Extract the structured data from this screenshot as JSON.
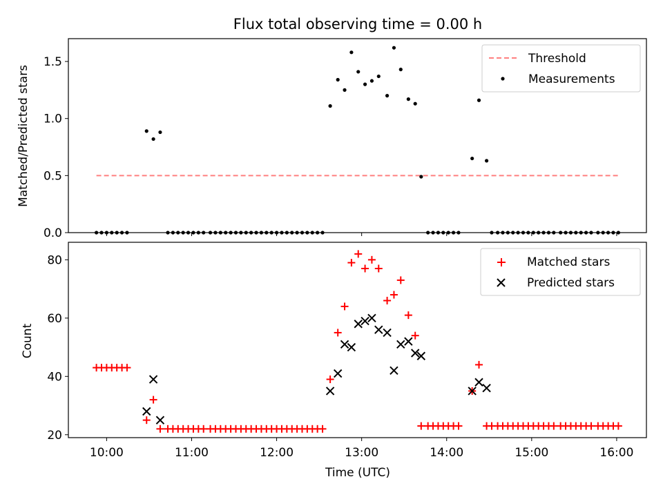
{
  "chart_data": [
    {
      "type": "scatter",
      "title": "Flux total observing time = 0.00 h",
      "xlabel": "",
      "ylabel": "Matched/Predicted stars",
      "xlim": [
        9.55,
        16.35
      ],
      "ylim": [
        0.0,
        1.7
      ],
      "yticks": [
        0.0,
        0.5,
        1.0,
        1.5
      ],
      "ytick_labels": [
        "0.0",
        "0.5",
        "1.0",
        "1.5"
      ],
      "legend_position": "top-right",
      "threshold": {
        "name": "Threshold",
        "value": 0.5,
        "x_range": [
          9.88,
          16.03
        ],
        "color": "#ff7f7f"
      },
      "series": [
        {
          "name": "Measurements",
          "color": "#000000",
          "x": [
            9.88,
            9.94,
            10.0,
            10.06,
            10.12,
            10.18,
            10.24,
            10.47,
            10.55,
            10.63,
            10.72,
            10.78,
            10.84,
            10.9,
            10.96,
            11.02,
            11.08,
            11.14,
            11.22,
            11.28,
            11.34,
            11.4,
            11.46,
            11.52,
            11.58,
            11.64,
            11.7,
            11.76,
            11.82,
            11.88,
            11.94,
            12.0,
            12.06,
            12.12,
            12.18,
            12.24,
            12.3,
            12.36,
            12.42,
            12.48,
            12.54,
            12.63,
            12.72,
            12.8,
            12.88,
            12.96,
            13.04,
            13.12,
            13.2,
            13.3,
            13.38,
            13.46,
            13.55,
            13.63,
            13.7,
            13.78,
            13.84,
            13.9,
            13.96,
            14.02,
            14.08,
            14.14,
            14.3,
            14.38,
            14.47,
            14.53,
            14.6,
            14.66,
            14.72,
            14.78,
            14.84,
            14.9,
            14.96,
            15.02,
            15.08,
            15.14,
            15.2,
            15.26,
            15.34,
            15.4,
            15.46,
            15.52,
            15.58,
            15.64,
            15.7,
            15.78,
            15.84,
            15.9,
            15.96,
            16.02
          ],
          "y": [
            0,
            0,
            0,
            0,
            0,
            0,
            0,
            0.89,
            0.82,
            0.88,
            0,
            0,
            0,
            0,
            0,
            0,
            0,
            0,
            0,
            0,
            0,
            0,
            0,
            0,
            0,
            0,
            0,
            0,
            0,
            0,
            0,
            0,
            0,
            0,
            0,
            0,
            0,
            0,
            0,
            0,
            0,
            1.11,
            1.34,
            1.25,
            1.58,
            1.41,
            1.3,
            1.33,
            1.37,
            1.2,
            1.62,
            1.43,
            1.17,
            1.13,
            0.49,
            0,
            0,
            0,
            0,
            0,
            0,
            0,
            0.65,
            1.16,
            0.63,
            0,
            0,
            0,
            0,
            0,
            0,
            0,
            0,
            0,
            0,
            0,
            0,
            0,
            0,
            0,
            0,
            0,
            0,
            0,
            0,
            0,
            0,
            0,
            0,
            0
          ]
        }
      ]
    },
    {
      "type": "scatter",
      "title": "",
      "xlabel": "Time (UTC)",
      "ylabel": "Count",
      "xlim": [
        9.55,
        16.35
      ],
      "ylim": [
        19,
        86
      ],
      "yticks": [
        20,
        40,
        60,
        80
      ],
      "ytick_labels": [
        "20",
        "40",
        "60",
        "80"
      ],
      "xticks": [
        10,
        11,
        12,
        13,
        14,
        15,
        16
      ],
      "xtick_labels": [
        "10:00",
        "11:00",
        "12:00",
        "13:00",
        "14:00",
        "15:00",
        "16:00"
      ],
      "legend_position": "top-right",
      "series": [
        {
          "name": "Matched stars",
          "color": "#ff0000",
          "marker": "+",
          "x": [
            9.88,
            9.94,
            10.0,
            10.06,
            10.12,
            10.18,
            10.24,
            10.47,
            10.55,
            10.63,
            10.72,
            10.78,
            10.84,
            10.9,
            10.96,
            11.02,
            11.08,
            11.14,
            11.22,
            11.28,
            11.34,
            11.4,
            11.46,
            11.52,
            11.58,
            11.64,
            11.7,
            11.76,
            11.82,
            11.88,
            11.94,
            12.0,
            12.06,
            12.12,
            12.18,
            12.24,
            12.3,
            12.36,
            12.42,
            12.48,
            12.54,
            12.63,
            12.72,
            12.8,
            12.88,
            12.96,
            13.04,
            13.12,
            13.2,
            13.3,
            13.38,
            13.46,
            13.55,
            13.63,
            13.7,
            13.78,
            13.84,
            13.9,
            13.96,
            14.02,
            14.08,
            14.14,
            14.3,
            14.38,
            14.47,
            14.53,
            14.6,
            14.66,
            14.72,
            14.78,
            14.84,
            14.9,
            14.96,
            15.02,
            15.08,
            15.14,
            15.2,
            15.26,
            15.34,
            15.4,
            15.46,
            15.52,
            15.58,
            15.64,
            15.7,
            15.78,
            15.84,
            15.9,
            15.96,
            16.02
          ],
          "y": [
            43,
            43,
            43,
            43,
            43,
            43,
            43,
            25,
            32,
            22,
            22,
            22,
            22,
            22,
            22,
            22,
            22,
            22,
            22,
            22,
            22,
            22,
            22,
            22,
            22,
            22,
            22,
            22,
            22,
            22,
            22,
            22,
            22,
            22,
            22,
            22,
            22,
            22,
            22,
            22,
            22,
            39,
            55,
            64,
            79,
            82,
            77,
            80,
            77,
            66,
            68,
            73,
            61,
            54,
            23,
            23,
            23,
            23,
            23,
            23,
            23,
            23,
            35,
            44,
            23,
            23,
            23,
            23,
            23,
            23,
            23,
            23,
            23,
            23,
            23,
            23,
            23,
            23,
            23,
            23,
            23,
            23,
            23,
            23,
            23,
            23,
            23,
            23,
            23,
            23
          ]
        },
        {
          "name": "Predicted stars",
          "color": "#000000",
          "marker": "x",
          "x": [
            10.47,
            10.55,
            10.63,
            12.63,
            12.72,
            12.8,
            12.88,
            12.96,
            13.04,
            13.12,
            13.2,
            13.3,
            13.38,
            13.46,
            13.55,
            13.63,
            13.7,
            14.3,
            14.38,
            14.47
          ],
          "y": [
            28,
            39,
            25,
            35,
            41,
            51,
            50,
            58,
            59,
            60,
            56,
            55,
            42,
            51,
            52,
            48,
            47,
            35,
            38,
            36
          ]
        }
      ]
    }
  ]
}
